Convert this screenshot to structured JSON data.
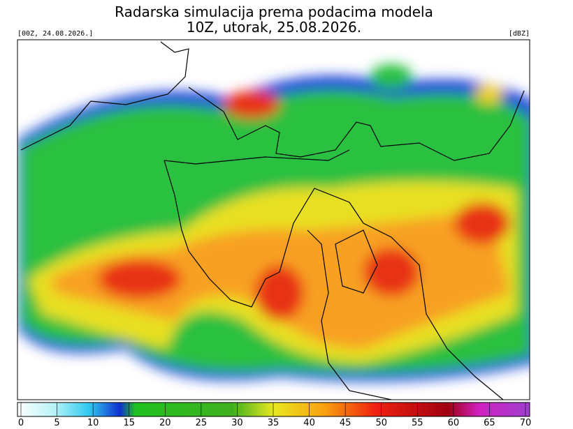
{
  "header": {
    "title": "Radarska simulacija prema podacima modela",
    "subtitle": "10Z, utorak, 25.08.2026.",
    "run": "[00Z, 24.08.2026.]",
    "unit": "[dBZ]"
  },
  "colorbar": {
    "lim": [
      0,
      70
    ],
    "ticks": [
      0,
      5,
      10,
      15,
      20,
      25,
      30,
      35,
      40,
      45,
      50,
      55,
      60,
      65,
      70
    ]
  }
}
